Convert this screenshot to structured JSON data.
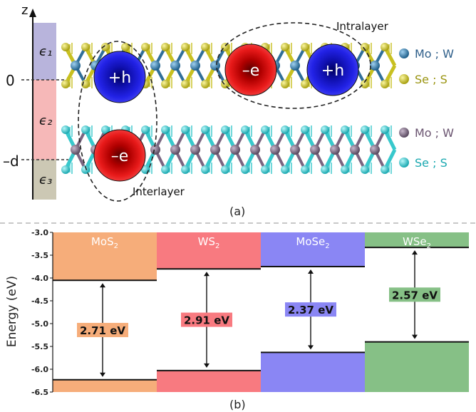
{
  "panel_a": {
    "caption": "(a)",
    "axis_label": "z",
    "tick_zero": "0",
    "tick_d": "–d",
    "dielectric_labels": [
      "ϵ₁",
      "ϵ₂",
      "ϵ₃"
    ],
    "intralayer_label": "Intralayer",
    "interlayer_label": "Interlayer",
    "hole_label": "+h",
    "electron_label": "–e",
    "legend": [
      {
        "label": "Mo ; W",
        "color": "#2f6f9a"
      },
      {
        "label": "Se ; S",
        "color": "#c8c020"
      },
      {
        "label": "Mo ; W",
        "color": "#7a6480"
      },
      {
        "label": "Se ; S",
        "color": "#38c8cc"
      }
    ],
    "colors": {
      "eps1": "#b8b4dc",
      "eps2": "#f6b8b8",
      "eps3": "#ccc8b4",
      "top_metal": "#2f6f9a",
      "top_chalcogen": "#c8c020",
      "bottom_metal": "#7a6480",
      "bottom_chalcogen": "#38c8cc",
      "hole": "#1a1adc",
      "electron": "#e21818"
    }
  },
  "panel_b": {
    "caption": "(b)",
    "ylabel": "Energy (eV)",
    "ylim": [
      -6.5,
      -3.0
    ],
    "ticks": [
      "-3.0",
      "-3.5",
      "-4.0",
      "-4.5",
      "-5.0",
      "-5.5",
      "-6.0",
      "-6.5"
    ],
    "materials": [
      {
        "name": "MoS",
        "sub": "2",
        "cbm": -4.05,
        "vbm": -6.23,
        "gap_label": "2.71 eV",
        "color": "#f6ad7a"
      },
      {
        "name": "WS",
        "sub": "2",
        "cbm": -3.8,
        "vbm": -6.03,
        "gap_label": "2.91 eV",
        "color": "#f87a80"
      },
      {
        "name": "MoSe",
        "sub": "2",
        "cbm": -3.75,
        "vbm": -5.63,
        "gap_label": "2.37 eV",
        "color": "#8a86f4"
      },
      {
        "name": "WSe",
        "sub": "2",
        "cbm": -3.33,
        "vbm": -5.4,
        "gap_label": "2.57 eV",
        "color": "#86c086"
      }
    ]
  }
}
